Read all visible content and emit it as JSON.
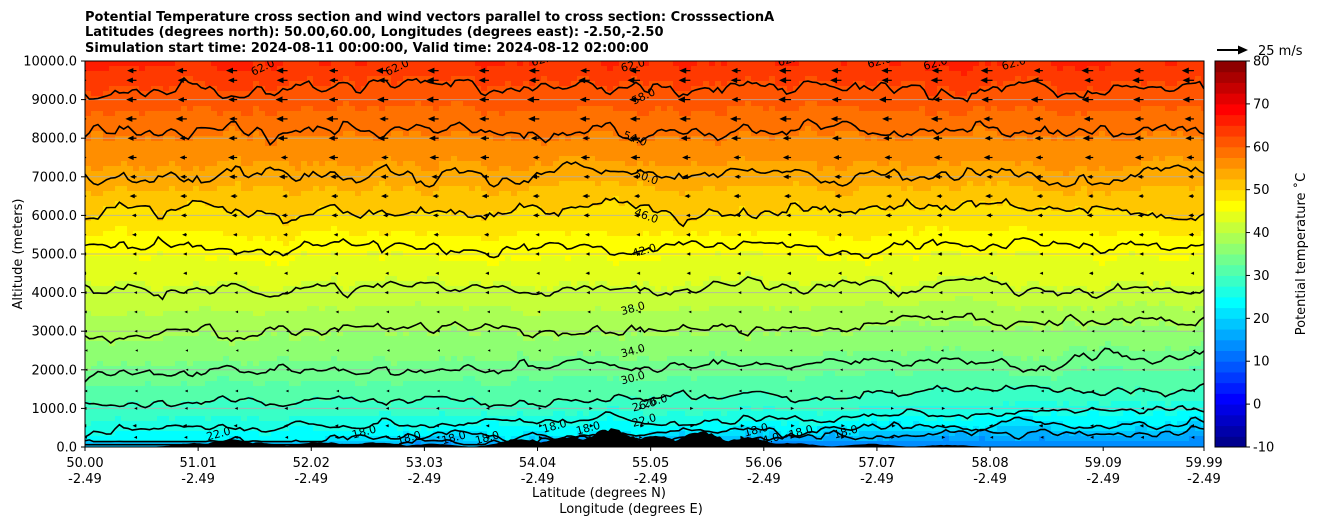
{
  "chart_data": {
    "type": "heatmap",
    "title_lines": [
      "Potential Temperature cross section and wind vectors parallel to cross section: CrosssectionA",
      "Latitudes (degrees north): 50.00,60.00, Longitudes (degrees east): -2.50,-2.50",
      "Simulation start time: 2024-08-11 00:00:00, Valid time: 2024-08-12 02:00:00"
    ],
    "ylabel": "Altitude (meters)",
    "xlabel_line1": "Latitude (degrees N)",
    "xlabel_line2": "Longitude (degrees E)",
    "ylim": [
      0,
      10000
    ],
    "xlim": [
      50.0,
      59.99
    ],
    "y_ticks": [
      0,
      1000,
      2000,
      3000,
      4000,
      5000,
      6000,
      7000,
      8000,
      9000,
      10000
    ],
    "y_tick_labels": [
      "0.0",
      "1000.0",
      "2000.0",
      "3000.0",
      "4000.0",
      "5000.0",
      "6000.0",
      "7000.0",
      "8000.0",
      "9000.0",
      "10000.0"
    ],
    "x_ticks": [
      50.0,
      51.01,
      52.02,
      53.03,
      54.04,
      55.05,
      56.06,
      57.07,
      58.08,
      59.09,
      59.99
    ],
    "x_tick_labels": [
      [
        "50.00",
        "-2.49"
      ],
      [
        "51.01",
        "-2.49"
      ],
      [
        "52.02",
        "-2.49"
      ],
      [
        "53.03",
        "-2.49"
      ],
      [
        "54.04",
        "-2.49"
      ],
      [
        "55.05",
        "-2.49"
      ],
      [
        "56.06",
        "-2.49"
      ],
      [
        "57.07",
        "-2.49"
      ],
      [
        "58.08",
        "-2.49"
      ],
      [
        "59.09",
        "-2.49"
      ],
      [
        "59.99",
        "-2.49"
      ]
    ],
    "grid": "horizontal",
    "colorbar": {
      "label": "Potential temperature $^\\circ$C",
      "label_display": "Potential temperature ˚C",
      "min": -10,
      "max": 80,
      "ticks": [
        -10,
        0,
        10,
        20,
        30,
        40,
        50,
        60,
        70,
        80
      ],
      "colormap": "jet",
      "levels": 36
    },
    "quiver_key": {
      "label": "25 m/s",
      "value": 25
    },
    "contour_levels": [
      18,
      22,
      26,
      30,
      34,
      38,
      42,
      46,
      50,
      54,
      58,
      62
    ],
    "contour_mean_altitudes": [
      {
        "level": 18,
        "alt": 150
      },
      {
        "level": 22,
        "alt": 350
      },
      {
        "level": 26,
        "alt": 700
      },
      {
        "level": 30,
        "alt": 1300
      },
      {
        "level": 34,
        "alt": 2100
      },
      {
        "level": 38,
        "alt": 3100
      },
      {
        "level": 42,
        "alt": 4100
      },
      {
        "level": 46,
        "alt": 5150
      },
      {
        "level": 50,
        "alt": 6100
      },
      {
        "level": 54,
        "alt": 7050
      },
      {
        "level": 58,
        "alt": 8150
      },
      {
        "level": 62,
        "alt": 9300
      }
    ],
    "contour_labels": [
      {
        "text": "62.0",
        "x": 51.6,
        "alt": 9750
      },
      {
        "text": "62.0",
        "x": 52.8,
        "alt": 9750
      },
      {
        "text": "62.0",
        "x": 54.1,
        "alt": 9950
      },
      {
        "text": "62.0",
        "x": 54.9,
        "alt": 9800
      },
      {
        "text": "62.0",
        "x": 56.3,
        "alt": 9950
      },
      {
        "text": "62.0",
        "x": 57.1,
        "alt": 9900
      },
      {
        "text": "62.0",
        "x": 57.6,
        "alt": 9850
      },
      {
        "text": "62.0",
        "x": 58.3,
        "alt": 9850
      },
      {
        "text": "58.0",
        "x": 55.0,
        "alt": 9000
      },
      {
        "text": "54.0",
        "x": 54.9,
        "alt": 7900
      },
      {
        "text": "50.0",
        "x": 55.0,
        "alt": 6900
      },
      {
        "text": "46.0",
        "x": 55.0,
        "alt": 5900
      },
      {
        "text": "42.0",
        "x": 55.0,
        "alt": 5000
      },
      {
        "text": "38.0",
        "x": 54.9,
        "alt": 3500
      },
      {
        "text": "34.0",
        "x": 54.9,
        "alt": 2400
      },
      {
        "text": "30.0",
        "x": 54.9,
        "alt": 1700
      },
      {
        "text": "26.0",
        "x": 55.0,
        "alt": 1000
      },
      {
        "text": "26.0",
        "x": 55.1,
        "alt": 1100
      },
      {
        "text": "22.0",
        "x": 55.0,
        "alt": 600
      },
      {
        "text": "22.0",
        "x": 51.2,
        "alt": 250
      },
      {
        "text": "18.0",
        "x": 52.5,
        "alt": 300
      },
      {
        "text": "18.0",
        "x": 52.9,
        "alt": 150
      },
      {
        "text": "18.0",
        "x": 53.3,
        "alt": 150
      },
      {
        "text": "18.0",
        "x": 53.6,
        "alt": 150
      },
      {
        "text": "18.0",
        "x": 54.2,
        "alt": 450
      },
      {
        "text": "18.0",
        "x": 54.5,
        "alt": 400
      },
      {
        "text": "18.0",
        "x": 56.0,
        "alt": 350
      },
      {
        "text": "14.0",
        "x": 56.1,
        "alt": 100
      },
      {
        "text": "18.0",
        "x": 56.4,
        "alt": 300
      },
      {
        "text": "18.0",
        "x": 56.8,
        "alt": 300
      }
    ],
    "wind_vectors": {
      "direction": "southward (negative x) in upper levels, weak northward near surface",
      "rows_alt": [
        250,
        550,
        1000,
        1450,
        2000,
        2500,
        3000,
        3500,
        4000,
        4500,
        5000,
        5500,
        6000,
        6500,
        7000,
        7500,
        8000,
        8500,
        9000,
        9500,
        9750
      ],
      "speed_by_row": [
        3,
        4,
        3,
        2,
        1.5,
        1.5,
        2,
        2.5,
        3.5,
        4,
        4.5,
        5,
        6,
        7,
        8,
        9,
        10,
        11,
        12,
        12,
        12
      ]
    }
  }
}
